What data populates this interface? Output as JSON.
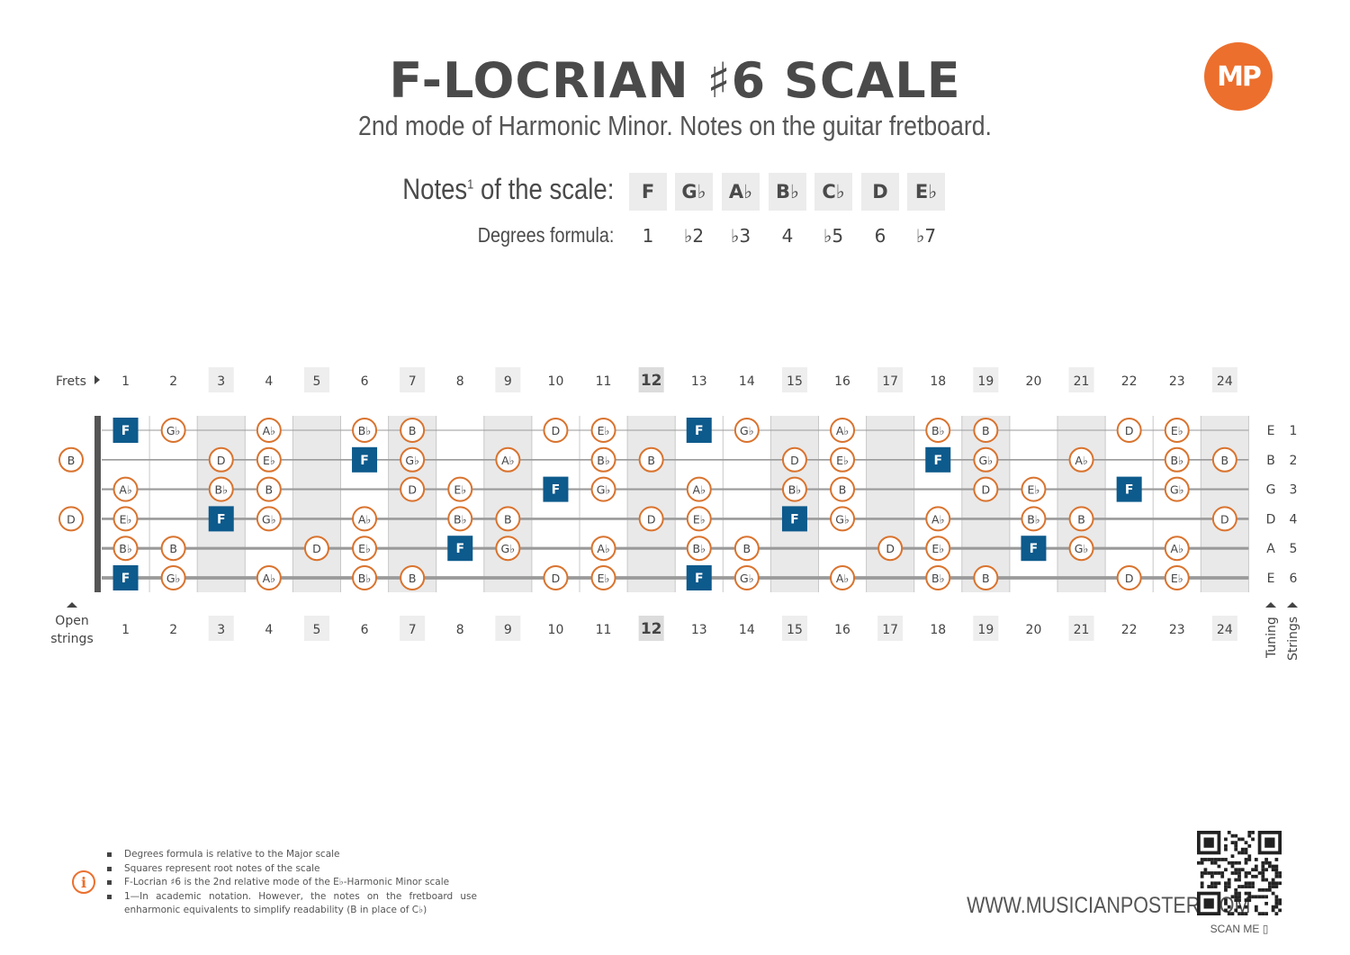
{
  "header": {
    "title": "F-LOCRIAN ♯6 SCALE",
    "subtitle": "2nd mode of Harmonic Minor. Notes on the guitar fretboard."
  },
  "logo": {
    "text": "MP",
    "color": "#ec6f2d"
  },
  "scale": {
    "notes_label": "Notes",
    "notes_sup": "1",
    "notes_label_tail": " of the scale:",
    "notes": [
      "F",
      "G♭",
      "A♭",
      "B♭",
      "C♭",
      "D",
      "E♭"
    ],
    "degrees_label": "Degrees formula:",
    "degrees": [
      "1",
      "♭2",
      "♭3",
      "4",
      "♭5",
      "6",
      "♭7"
    ]
  },
  "fretboard": {
    "frets_label": "Frets",
    "fret_numbers": [
      "1",
      "2",
      "3",
      "4",
      "5",
      "6",
      "7",
      "8",
      "9",
      "10",
      "11",
      "12",
      "13",
      "14",
      "15",
      "16",
      "17",
      "18",
      "19",
      "20",
      "21",
      "22",
      "23",
      "24"
    ],
    "highlighted_frets": [
      3,
      5,
      7,
      9,
      12,
      15,
      17,
      19,
      21,
      24
    ],
    "open_strings_label": [
      "Open",
      "strings"
    ],
    "tuning_label": "Tuning",
    "strings_label": "Strings",
    "strings": [
      {
        "number": "1",
        "tuning": "E",
        "open": "",
        "frets": [
          "F",
          "G♭",
          "",
          "A♭",
          "",
          "B♭",
          "B",
          "",
          "",
          "D",
          "E♭",
          "",
          "F",
          "G♭",
          "",
          "A♭",
          "",
          "B♭",
          "B",
          "",
          "",
          "D",
          "E♭",
          ""
        ]
      },
      {
        "number": "2",
        "tuning": "B",
        "open": "B",
        "frets": [
          "",
          "",
          "D",
          "E♭",
          "",
          "F",
          "G♭",
          "",
          "A♭",
          "",
          "B♭",
          "B",
          "",
          "",
          "D",
          "E♭",
          "",
          "F",
          "G♭",
          "",
          "A♭",
          "",
          "B♭",
          "B"
        ]
      },
      {
        "number": "3",
        "tuning": "G",
        "open": "",
        "frets": [
          "A♭",
          "",
          "B♭",
          "B",
          "",
          "",
          "D",
          "E♭",
          "",
          "F",
          "G♭",
          "",
          "A♭",
          "",
          "B♭",
          "B",
          "",
          "",
          "D",
          "E♭",
          "",
          "F",
          "G♭",
          ""
        ]
      },
      {
        "number": "4",
        "tuning": "D",
        "open": "D",
        "frets": [
          "E♭",
          "",
          "F",
          "G♭",
          "",
          "A♭",
          "",
          "B♭",
          "B",
          "",
          "",
          "D",
          "E♭",
          "",
          "F",
          "G♭",
          "",
          "A♭",
          "",
          "B♭",
          "B",
          "",
          "",
          "D"
        ]
      },
      {
        "number": "5",
        "tuning": "A",
        "open": "",
        "frets": [
          "B♭",
          "B",
          "",
          "",
          "D",
          "E♭",
          "",
          "F",
          "G♭",
          "",
          "A♭",
          "",
          "B♭",
          "B",
          "",
          "",
          "D",
          "E♭",
          "",
          "F",
          "G♭",
          "",
          "A♭",
          ""
        ]
      },
      {
        "number": "6",
        "tuning": "E",
        "open": "",
        "frets": [
          "F",
          "G♭",
          "",
          "A♭",
          "",
          "B♭",
          "B",
          "",
          "",
          "D",
          "E♭",
          "",
          "F",
          "G♭",
          "",
          "A♭",
          "",
          "B♭",
          "B",
          "",
          "",
          "D",
          "E♭",
          ""
        ]
      }
    ],
    "root_note": "F",
    "colors": {
      "root": "#0d5a8c",
      "note_ring": "#d9732e",
      "fret_highlight": "#e9e9e9"
    }
  },
  "footnotes": [
    "Degrees formula is relative to the Major scale",
    "Squares represent root notes of the scale",
    "F-Locrian ♯6 is the 2nd relative mode of the E♭-Harmonic Minor scale",
    "1—In academic notation. However, the notes on the fretboard use enharmonic equivalents to simplify readability (B in place of C♭)"
  ],
  "website": "WWW.MUSICIANPOSTER.COM",
  "scan_label": "SCAN ME"
}
